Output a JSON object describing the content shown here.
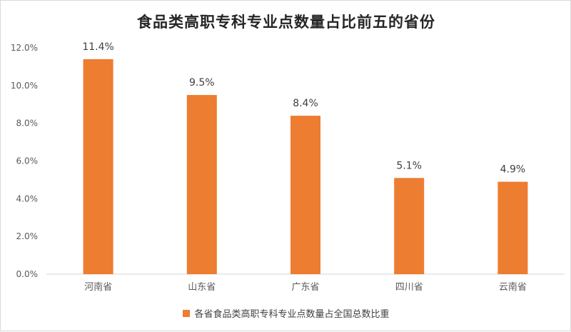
{
  "chart_data": {
    "type": "bar",
    "title": "食品类高职专科专业点数量占比前五的省份",
    "categories": [
      "河南省",
      "山东省",
      "广东省",
      "四川省",
      "云南省"
    ],
    "series": [
      {
        "name": "各省食品类高职专科专业点数量占全国总数比重",
        "values": [
          11.4,
          9.5,
          8.4,
          5.1,
          4.9
        ],
        "data_labels": [
          "11.4%",
          "9.5%",
          "8.4%",
          "5.1%",
          "4.9%"
        ],
        "color": "#ED7D31"
      }
    ],
    "ylim": [
      0,
      12
    ],
    "yticks": [
      0,
      2,
      4,
      6,
      8,
      10,
      12
    ],
    "ytick_labels": [
      "0.0%",
      "2.0%",
      "4.0%",
      "6.0%",
      "8.0%",
      "10.0%",
      "12.0%"
    ],
    "grid": false,
    "legend_position": "bottom"
  }
}
